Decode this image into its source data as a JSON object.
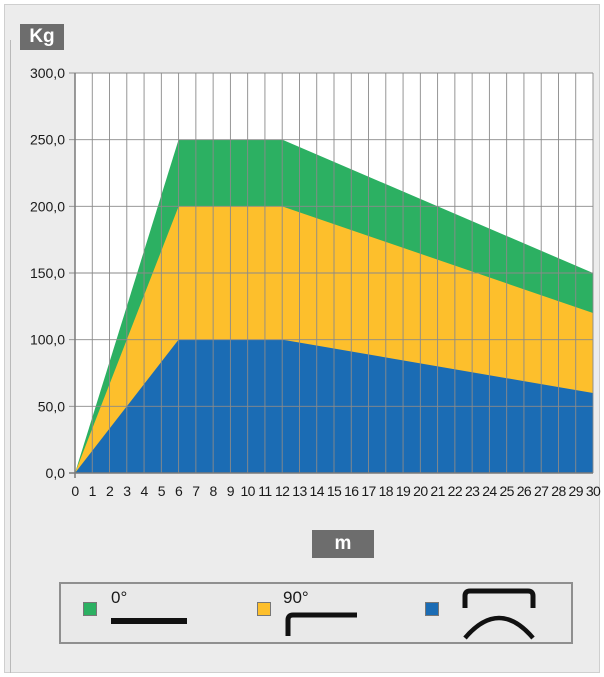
{
  "y_unit_label": "Kg",
  "x_unit_label": "m",
  "colors": {
    "green": "#2cb062",
    "yellow": "#fdbf2c",
    "blue": "#1b6cb4",
    "grid": "#8a8a8a",
    "axis": "#7a7a7a"
  },
  "legend": [
    {
      "label": "0°",
      "color": "#2cb062",
      "icon": "straight-bar-icon"
    },
    {
      "label": "90°",
      "color": "#fdbf2c",
      "icon": "right-angle-bar-icon"
    },
    {
      "label": "",
      "color": "#1b6cb4",
      "icon": "curved-arch-icon"
    }
  ],
  "chart_data": {
    "type": "area",
    "xlabel": "m",
    "ylabel": "Kg",
    "xlim": [
      0,
      30
    ],
    "ylim": [
      0,
      300
    ],
    "grid": true,
    "legend_position": "bottom",
    "x_ticks": [
      "0",
      "1",
      "2",
      "3",
      "4",
      "5",
      "6",
      "7",
      "8",
      "9",
      "10",
      "11",
      "12",
      "13",
      "14",
      "15",
      "16",
      "17",
      "18",
      "19",
      "20",
      "21",
      "22",
      "23",
      "24",
      "25",
      "26",
      "27",
      "28",
      "29",
      "30"
    ],
    "y_ticks": [
      "0,0",
      "50,0",
      "100,0",
      "150,0",
      "200,0",
      "250,0",
      "300,0"
    ],
    "y_tick_values": [
      0,
      50,
      100,
      150,
      200,
      250,
      300
    ],
    "series": [
      {
        "name": "0°",
        "color": "#2cb062",
        "points": [
          [
            0,
            0
          ],
          [
            6,
            250
          ],
          [
            12,
            250
          ],
          [
            30,
            150
          ]
        ]
      },
      {
        "name": "90°",
        "color": "#fdbf2c",
        "points": [
          [
            0,
            0
          ],
          [
            6,
            200
          ],
          [
            12,
            200
          ],
          [
            30,
            120
          ]
        ]
      },
      {
        "color": "#1b6cb4",
        "points": [
          [
            0,
            0
          ],
          [
            6,
            100
          ],
          [
            12,
            100
          ],
          [
            30,
            60
          ]
        ]
      }
    ]
  }
}
